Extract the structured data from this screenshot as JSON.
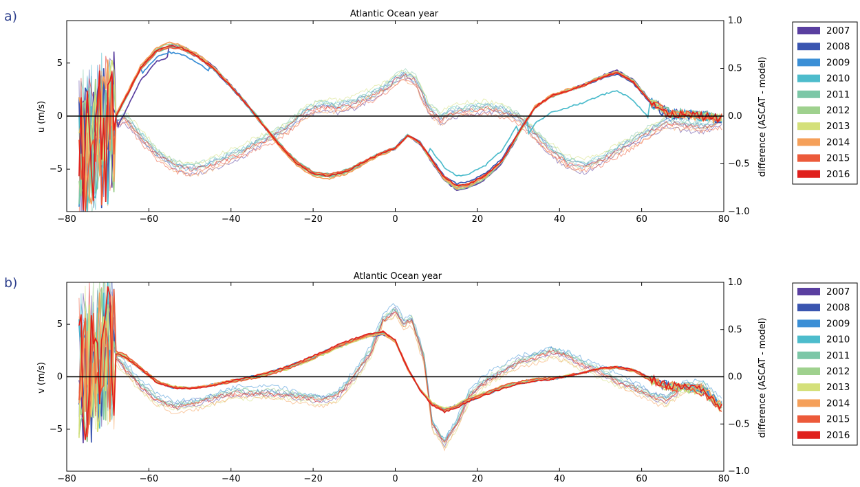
{
  "colors": {
    "2007": "#5a3fa0",
    "2008": "#3a55b0",
    "2009": "#3b8fd6",
    "2010": "#4dbccc",
    "2011": "#7cc7a7",
    "2012": "#9fd18e",
    "2013": "#d4e07a",
    "2014": "#f5a05a",
    "2015": "#ec5a3a",
    "2016": "#e0201c"
  },
  "chart_data": [
    {
      "panel_label": "a)",
      "type": "line",
      "title": "Atlantic Ocean year",
      "ylabel": "u (m/s)",
      "ylabel_right": "difference (ASCAT - model)",
      "xlim": [
        -80,
        80
      ],
      "ylim": [
        -9,
        9
      ],
      "ylim_right": [
        -1.0,
        1.0
      ],
      "xticks": [
        "−80",
        "−60",
        "−40",
        "−20",
        "0",
        "20",
        "40",
        "60",
        "80"
      ],
      "yticks": [
        "−5",
        "0",
        "5"
      ],
      "yticks_right": [
        "−1.0",
        "−0.5",
        "0.0",
        "0.5",
        "1.0"
      ],
      "legend": [
        "2007",
        "2008",
        "2009",
        "2010",
        "2011",
        "2012",
        "2013",
        "2014",
        "2015",
        "2016"
      ],
      "legend_position": "outside-right",
      "zero_line": true,
      "series_u_mean": {
        "x": [
          -74,
          -70,
          -66,
          -62,
          -58,
          -55,
          -52,
          -48,
          -44,
          -40,
          -36,
          -32,
          -28,
          -24,
          -20,
          -16,
          -12,
          -8,
          -4,
          0,
          3,
          6,
          9,
          12,
          15,
          18,
          22,
          26,
          30,
          34,
          38,
          42,
          46,
          50,
          54,
          58,
          62,
          66,
          70,
          75,
          79
        ],
        "y": [
          -3.5,
          -1.5,
          1.5,
          4.5,
          6.2,
          6.6,
          6.4,
          5.6,
          4.4,
          2.8,
          1.0,
          -0.9,
          -2.8,
          -4.4,
          -5.4,
          -5.6,
          -5.2,
          -4.4,
          -3.6,
          -3.0,
          -1.8,
          -2.5,
          -4.2,
          -5.8,
          -6.6,
          -6.4,
          -5.6,
          -4.2,
          -1.6,
          0.8,
          1.9,
          2.4,
          2.9,
          3.6,
          4.1,
          3.2,
          1.4,
          0.3,
          0.2,
          0.0,
          -0.2
        ]
      },
      "series_diff_mean": {
        "x": [
          -74,
          -70,
          -66,
          -62,
          -58,
          -54,
          -50,
          -46,
          -42,
          -38,
          -34,
          -30,
          -26,
          -22,
          -18,
          -14,
          -10,
          -6,
          -2,
          2,
          5,
          8,
          11,
          14,
          18,
          22,
          26,
          30,
          34,
          38,
          42,
          46,
          50,
          54,
          58,
          62,
          66,
          70,
          75,
          79
        ],
        "y": [
          -0.3,
          -0.1,
          0.0,
          -0.2,
          -0.38,
          -0.5,
          -0.55,
          -0.52,
          -0.45,
          -0.38,
          -0.28,
          -0.2,
          -0.1,
          0.05,
          0.12,
          0.1,
          0.15,
          0.22,
          0.32,
          0.45,
          0.38,
          0.1,
          -0.02,
          0.05,
          0.08,
          0.1,
          0.07,
          0.0,
          -0.18,
          -0.35,
          -0.48,
          -0.52,
          -0.45,
          -0.35,
          -0.25,
          -0.15,
          -0.05,
          -0.08,
          -0.1,
          -0.05
        ]
      }
    },
    {
      "panel_label": "b)",
      "type": "line",
      "title": "Atlantic Ocean year",
      "ylabel": "v (m/s)",
      "ylabel_right": "difference (ASCAT - model)",
      "xlim": [
        -80,
        80
      ],
      "ylim": [
        -9,
        9
      ],
      "ylim_right": [
        -1.0,
        1.0
      ],
      "xticks": [
        "−80",
        "−60",
        "−40",
        "−20",
        "0",
        "20",
        "40",
        "60",
        "80"
      ],
      "yticks": [
        "−5",
        "0",
        "5"
      ],
      "yticks_right": [
        "−1.0",
        "−0.5",
        "0.0",
        "0.5",
        "1.0"
      ],
      "legend": [
        "2007",
        "2008",
        "2009",
        "2010",
        "2011",
        "2012",
        "2013",
        "2014",
        "2015",
        "2016"
      ],
      "legend_position": "outside-right",
      "zero_line": true,
      "series_v_mean": {
        "x": [
          -74,
          -70,
          -66,
          -62,
          -58,
          -54,
          -50,
          -46,
          -42,
          -38,
          -34,
          -30,
          -26,
          -22,
          -18,
          -14,
          -10,
          -6,
          -3,
          0,
          3,
          6,
          9,
          12,
          15,
          18,
          22,
          26,
          30,
          34,
          38,
          42,
          46,
          50,
          54,
          58,
          62,
          66,
          70,
          75,
          79
        ],
        "y": [
          0.0,
          2.5,
          2.0,
          0.8,
          -0.5,
          -1.0,
          -1.1,
          -0.9,
          -0.6,
          -0.3,
          0.0,
          0.4,
          0.9,
          1.5,
          2.2,
          2.9,
          3.5,
          4.0,
          4.2,
          3.4,
          0.8,
          -1.2,
          -2.6,
          -3.2,
          -2.8,
          -2.2,
          -1.6,
          -1.0,
          -0.6,
          -0.3,
          -0.2,
          0.1,
          0.4,
          0.8,
          0.9,
          0.6,
          -0.2,
          -0.9,
          -1.0,
          -1.3,
          -2.8
        ]
      },
      "series_diff_mean": {
        "x": [
          -74,
          -70,
          -66,
          -62,
          -58,
          -54,
          -50,
          -46,
          -42,
          -38,
          -34,
          -30,
          -26,
          -22,
          -18,
          -14,
          -10,
          -6,
          -3,
          0,
          2,
          4,
          7,
          9,
          12,
          15,
          18,
          22,
          26,
          30,
          34,
          38,
          42,
          46,
          50,
          54,
          58,
          62,
          66,
          70,
          75,
          79
        ],
        "y": [
          0.2,
          0.3,
          0.1,
          -0.1,
          -0.25,
          -0.32,
          -0.3,
          -0.25,
          -0.2,
          -0.17,
          -0.18,
          -0.18,
          -0.2,
          -0.22,
          -0.25,
          -0.2,
          0.0,
          0.25,
          0.6,
          0.7,
          0.55,
          0.6,
          0.2,
          -0.5,
          -0.7,
          -0.5,
          -0.2,
          -0.05,
          0.05,
          0.15,
          0.2,
          0.27,
          0.22,
          0.12,
          0.05,
          -0.05,
          -0.12,
          -0.2,
          -0.25,
          -0.1,
          -0.1,
          -0.3
        ]
      }
    }
  ]
}
